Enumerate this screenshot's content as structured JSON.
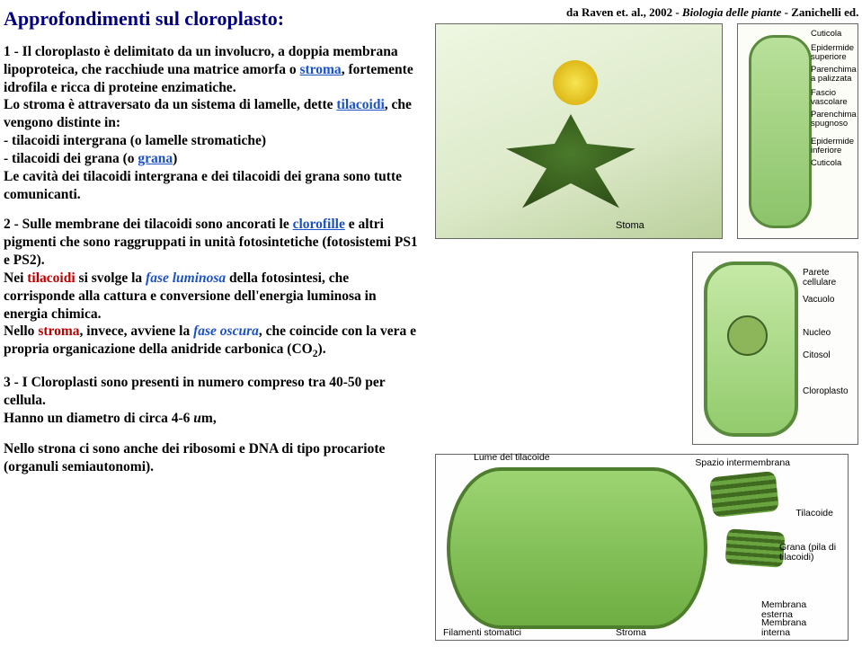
{
  "title": "Approfondimenti sul cloroplasto:",
  "caption_pre": "da Raven et. al., 2002 - ",
  "caption_ital": "Biologia delle piante",
  "caption_post": " - Zanichelli ed.",
  "p1_a": "1 - Il cloroplasto è delimitato da un involucro, a doppia membrana lipoproteica, che racchiude una matrice amorfa o ",
  "p1_stroma": "stroma",
  "p1_b": ", fortemente idrofila e ricca di proteine enzimatiche.",
  "p1_c": "Lo stroma è attraversato da un sistema di lamelle, dette ",
  "p1_tilacoidi": "tilacoidi",
  "p1_d": ", che vengono distinte in:",
  "p1_e": "- tilacoidi intergrana (o lamelle stromatiche)",
  "p1_f": "- tilacoidi dei grana (o ",
  "p1_grana": "grana",
  "p1_g": ")",
  "p1_h": "Le cavità dei tilacoidi intergrana e dei tilacoidi dei grana sono tutte comunicanti.",
  "p2_a": "2 - Sulle membrane dei tilacoidi sono ancorati le ",
  "p2_cloro": "clorofille",
  "p2_b": " e altri pigmenti che sono raggruppati in unità fotosintetiche (fotosistemi PS1 e PS2).",
  "p2_c": "Nei ",
  "p2_tila": "tilacoidi",
  "p2_d": " si svolge la ",
  "p2_fl": "fase luminosa",
  "p2_e": " della fotosintesi, che corrisponde alla cattura e conversione dell'energia luminosa in energia chimica.",
  "p2_f": "Nello ",
  "p2_stroma": "stroma",
  "p2_g": ", invece, avviene la ",
  "p2_fo": "fase oscura",
  "p2_h": ", che coincide con la vera e propria organicazione della anidride carbonica (CO",
  "p2_sub": "2",
  "p2_i": ").",
  "p3_a": "3 - I Cloroplasti sono presenti in numero compreso tra 40-50 per cellula.",
  "p3_b": "Hanno un diametro di circa 4-6 ",
  "p3_u": "u",
  "p3_c": "m,",
  "p4": "Nello strona ci sono anche dei ribosomi e DNA di tipo procariote (organuli semiautonomi).",
  "fig1_stoma": "Stoma",
  "fig2": {
    "l1": "Cuticola",
    "l2": "Epidermide superiore",
    "l3": "Parenchima a palizzata",
    "l4": "Fascio vascolare",
    "l5": "Parenchima spugnoso",
    "l6": "Epidermide inferiore",
    "l7": "Cuticola"
  },
  "fig3": {
    "r1": "Parete cellulare",
    "r2": "Vacuolo",
    "r3": "Nucleo",
    "r4": "Citosol",
    "r5": "Cloroplasto"
  },
  "fig4": {
    "lume": "Lume del tilacoide",
    "fil": "Filamenti stomatici",
    "stroma": "Stroma",
    "space": "Spazio intermembrana",
    "til": "Tilacoide",
    "grana": "Grana (pila di tilacoidi)",
    "mext": "Membrana esterna",
    "mint": "Membrana interna"
  }
}
